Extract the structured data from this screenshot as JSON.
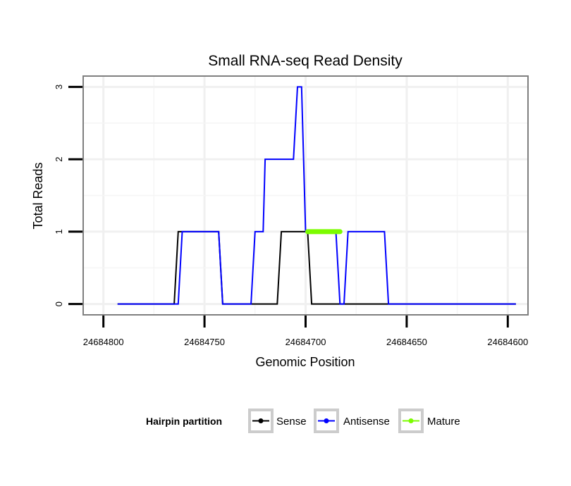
{
  "chart_data": {
    "type": "line",
    "title": "Small RNA-seq Read Density",
    "xlabel": "Genomic Position",
    "ylabel": "Total Reads",
    "x_reversed": true,
    "xlim": [
      24684810,
      24684590
    ],
    "ylim": [
      -0.15,
      3.15
    ],
    "x_ticks": [
      24684800,
      24684750,
      24684700,
      24684650,
      24684600
    ],
    "x_tick_labels": [
      "24684800",
      "24684750",
      "24684700",
      "24684650",
      "24684600"
    ],
    "y_ticks": [
      0,
      1,
      2,
      3
    ],
    "y_tick_labels": [
      "0",
      "1",
      "2",
      "3"
    ],
    "grid": true,
    "legend": {
      "title": "Hairpin partition",
      "position": "bottom",
      "entries": [
        "Sense",
        "Antisense",
        "Mature"
      ]
    },
    "series": [
      {
        "name": "Sense",
        "color": "#000000",
        "points": [
          [
            24684793,
            0
          ],
          [
            24684765,
            0
          ],
          [
            24684763,
            1
          ],
          [
            24684743,
            1
          ],
          [
            24684741,
            0
          ],
          [
            24684714,
            0
          ],
          [
            24684712,
            1
          ],
          [
            24684699,
            1
          ],
          [
            24684697,
            0
          ],
          [
            24684596,
            0
          ]
        ]
      },
      {
        "name": "Antisense",
        "color": "#0000ff",
        "points": [
          [
            24684793,
            0
          ],
          [
            24684763,
            0
          ],
          [
            24684761,
            1
          ],
          [
            24684743,
            1
          ],
          [
            24684741,
            0
          ],
          [
            24684727,
            0
          ],
          [
            24684725,
            1
          ],
          [
            24684721,
            1
          ],
          [
            24684720,
            2
          ],
          [
            24684706,
            2
          ],
          [
            24684704,
            3
          ],
          [
            24684702,
            3
          ],
          [
            24684700,
            1
          ],
          [
            24684685,
            1
          ],
          [
            24684683,
            0
          ],
          [
            24684681,
            0
          ],
          [
            24684679,
            1
          ],
          [
            24684661,
            1
          ],
          [
            24684659,
            0
          ],
          [
            24684596,
            0
          ]
        ]
      },
      {
        "name": "Mature",
        "color": "#7cfc00",
        "points": [
          [
            24684699,
            1
          ],
          [
            24684683,
            1
          ]
        ]
      }
    ]
  }
}
